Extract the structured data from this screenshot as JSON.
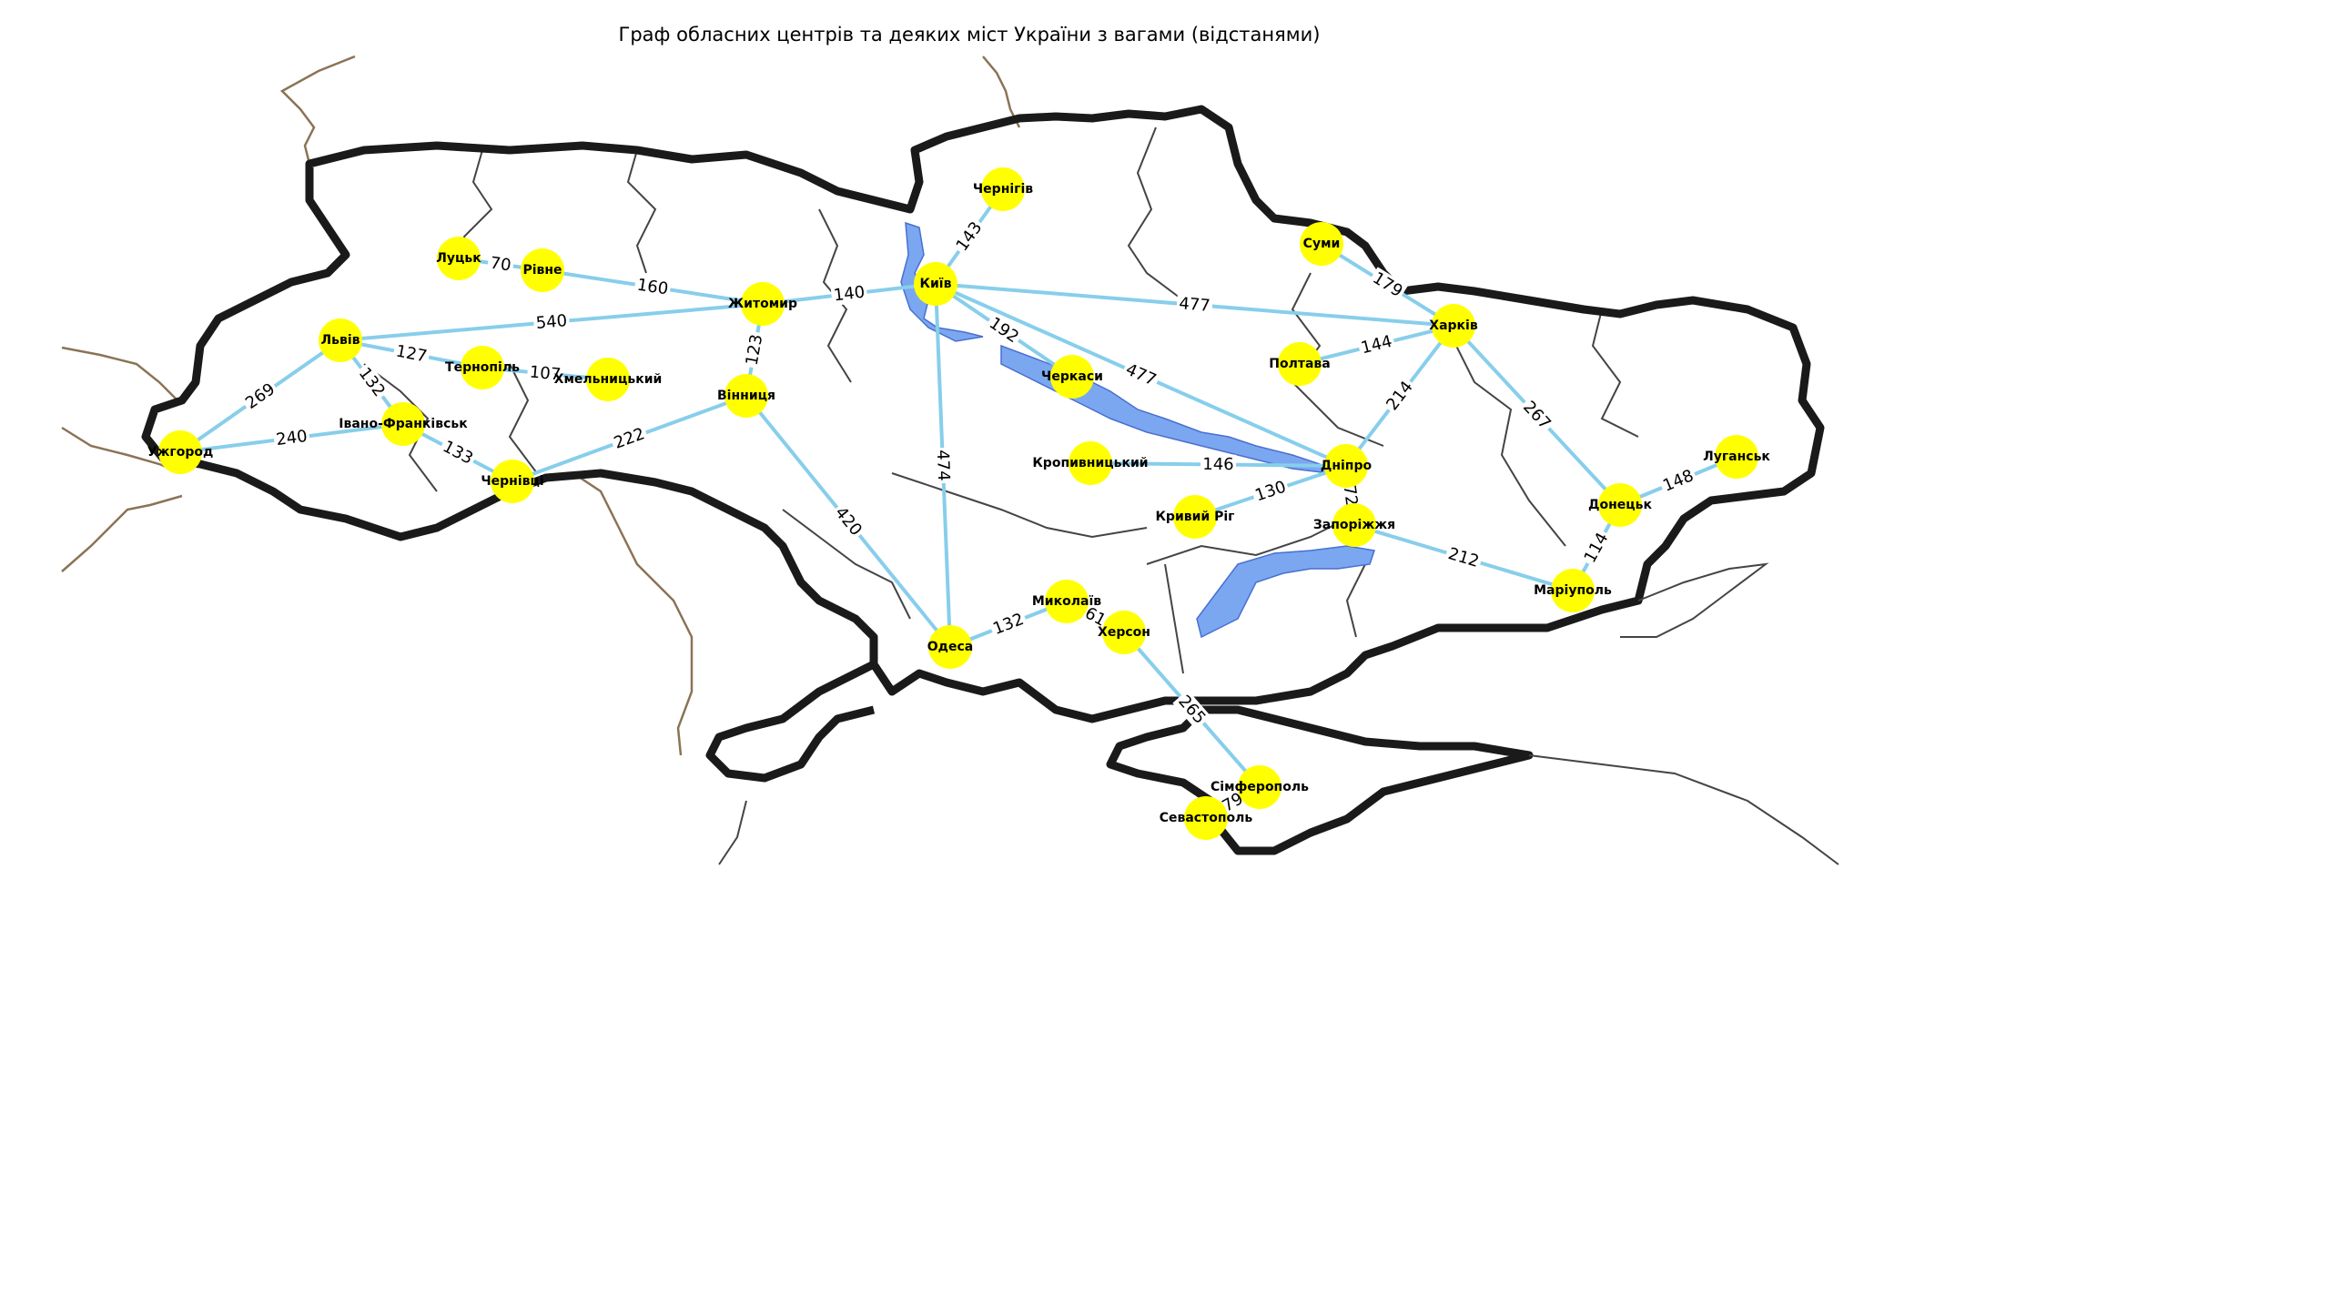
{
  "title": "Граф обласних центрів та деяких міст України з вагами (відстанями)",
  "colors": {
    "node": "#ffff00",
    "edge": "#87ceeb",
    "border": "#1a1a1a",
    "water": "#7aa7f0"
  },
  "nodes": [
    {
      "id": "kyiv",
      "label": "Київ"
    },
    {
      "id": "chernihiv",
      "label": "Чернігів"
    },
    {
      "id": "sumy",
      "label": "Суми"
    },
    {
      "id": "kharkiv",
      "label": "Харків"
    },
    {
      "id": "poltava",
      "label": "Полтава"
    },
    {
      "id": "cherkasy",
      "label": "Черкаси"
    },
    {
      "id": "zhytomyr",
      "label": "Житомир"
    },
    {
      "id": "rivne",
      "label": "Рівне"
    },
    {
      "id": "lutsk",
      "label": "Луцьк"
    },
    {
      "id": "lviv",
      "label": "Львів"
    },
    {
      "id": "ternopil",
      "label": "Тернопіль"
    },
    {
      "id": "khmelnytskyi",
      "label": "Хмельницький"
    },
    {
      "id": "vinnytsia",
      "label": "Вінниця"
    },
    {
      "id": "uzhhorod",
      "label": "Ужгород"
    },
    {
      "id": "ivano",
      "label": "Івано-Франківськ"
    },
    {
      "id": "chernivtsi",
      "label": "Чернівці"
    },
    {
      "id": "kropyvnytskyi",
      "label": "Кропивницький"
    },
    {
      "id": "dnipro",
      "label": "Дніпро"
    },
    {
      "id": "kryvyi",
      "label": "Кривий Ріг"
    },
    {
      "id": "zaporizhzhia",
      "label": "Запоріжжя"
    },
    {
      "id": "donetsk",
      "label": "Донецьк"
    },
    {
      "id": "luhansk",
      "label": "Луганськ"
    },
    {
      "id": "mariupol",
      "label": "Маріуполь"
    },
    {
      "id": "odesa",
      "label": "Одеса"
    },
    {
      "id": "mykolaiv",
      "label": "Миколаїв"
    },
    {
      "id": "kherson",
      "label": "Херсон"
    },
    {
      "id": "simferopol",
      "label": "Сімферополь"
    },
    {
      "id": "sevastopol",
      "label": "Севастополь"
    }
  ],
  "edges": [
    {
      "from": "kyiv",
      "to": "chernihiv",
      "weight": "143"
    },
    {
      "from": "kyiv",
      "to": "zhytomyr",
      "weight": "140"
    },
    {
      "from": "kyiv",
      "to": "cherkasy",
      "weight": "192"
    },
    {
      "from": "kyiv",
      "to": "kharkiv",
      "weight": "477"
    },
    {
      "from": "kyiv",
      "to": "dnipro",
      "weight": "477"
    },
    {
      "from": "kyiv",
      "to": "odesa",
      "weight": "474"
    },
    {
      "from": "sumy",
      "to": "kharkiv",
      "weight": "179"
    },
    {
      "from": "poltava",
      "to": "kharkiv",
      "weight": "144"
    },
    {
      "from": "kharkiv",
      "to": "dnipro",
      "weight": "214"
    },
    {
      "from": "kharkiv",
      "to": "donetsk",
      "weight": "267"
    },
    {
      "from": "lutsk",
      "to": "rivne",
      "weight": "70"
    },
    {
      "from": "rivne",
      "to": "zhytomyr",
      "weight": "160"
    },
    {
      "from": "lviv",
      "to": "zhytomyr",
      "weight": "540"
    },
    {
      "from": "lviv",
      "to": "ternopil",
      "weight": "127"
    },
    {
      "from": "lviv",
      "to": "uzhhorod",
      "weight": "269"
    },
    {
      "from": "lviv",
      "to": "ivano",
      "weight": "132"
    },
    {
      "from": "ternopil",
      "to": "khmelnytskyi",
      "weight": "107"
    },
    {
      "from": "zhytomyr",
      "to": "vinnytsia",
      "weight": "123"
    },
    {
      "from": "uzhhorod",
      "to": "ivano",
      "weight": "240"
    },
    {
      "from": "ivano",
      "to": "chernivtsi",
      "weight": "133"
    },
    {
      "from": "chernivtsi",
      "to": "vinnytsia",
      "weight": "222"
    },
    {
      "from": "vinnytsia",
      "to": "odesa",
      "weight": "420"
    },
    {
      "from": "kropyvnytskyi",
      "to": "dnipro",
      "weight": "146"
    },
    {
      "from": "kryvyi",
      "to": "dnipro",
      "weight": "130"
    },
    {
      "from": "dnipro",
      "to": "zaporizhzhia",
      "weight": "72"
    },
    {
      "from": "zaporizhzhia",
      "to": "mariupol",
      "weight": "212"
    },
    {
      "from": "donetsk",
      "to": "luhansk",
      "weight": "148"
    },
    {
      "from": "donetsk",
      "to": "mariupol",
      "weight": "114"
    },
    {
      "from": "odesa",
      "to": "mykolaiv",
      "weight": "132"
    },
    {
      "from": "mykolaiv",
      "to": "kherson",
      "weight": "61"
    },
    {
      "from": "kherson",
      "to": "simferopol",
      "weight": "265"
    },
    {
      "from": "simferopol",
      "to": "sevastopol",
      "weight": "79"
    }
  ]
}
